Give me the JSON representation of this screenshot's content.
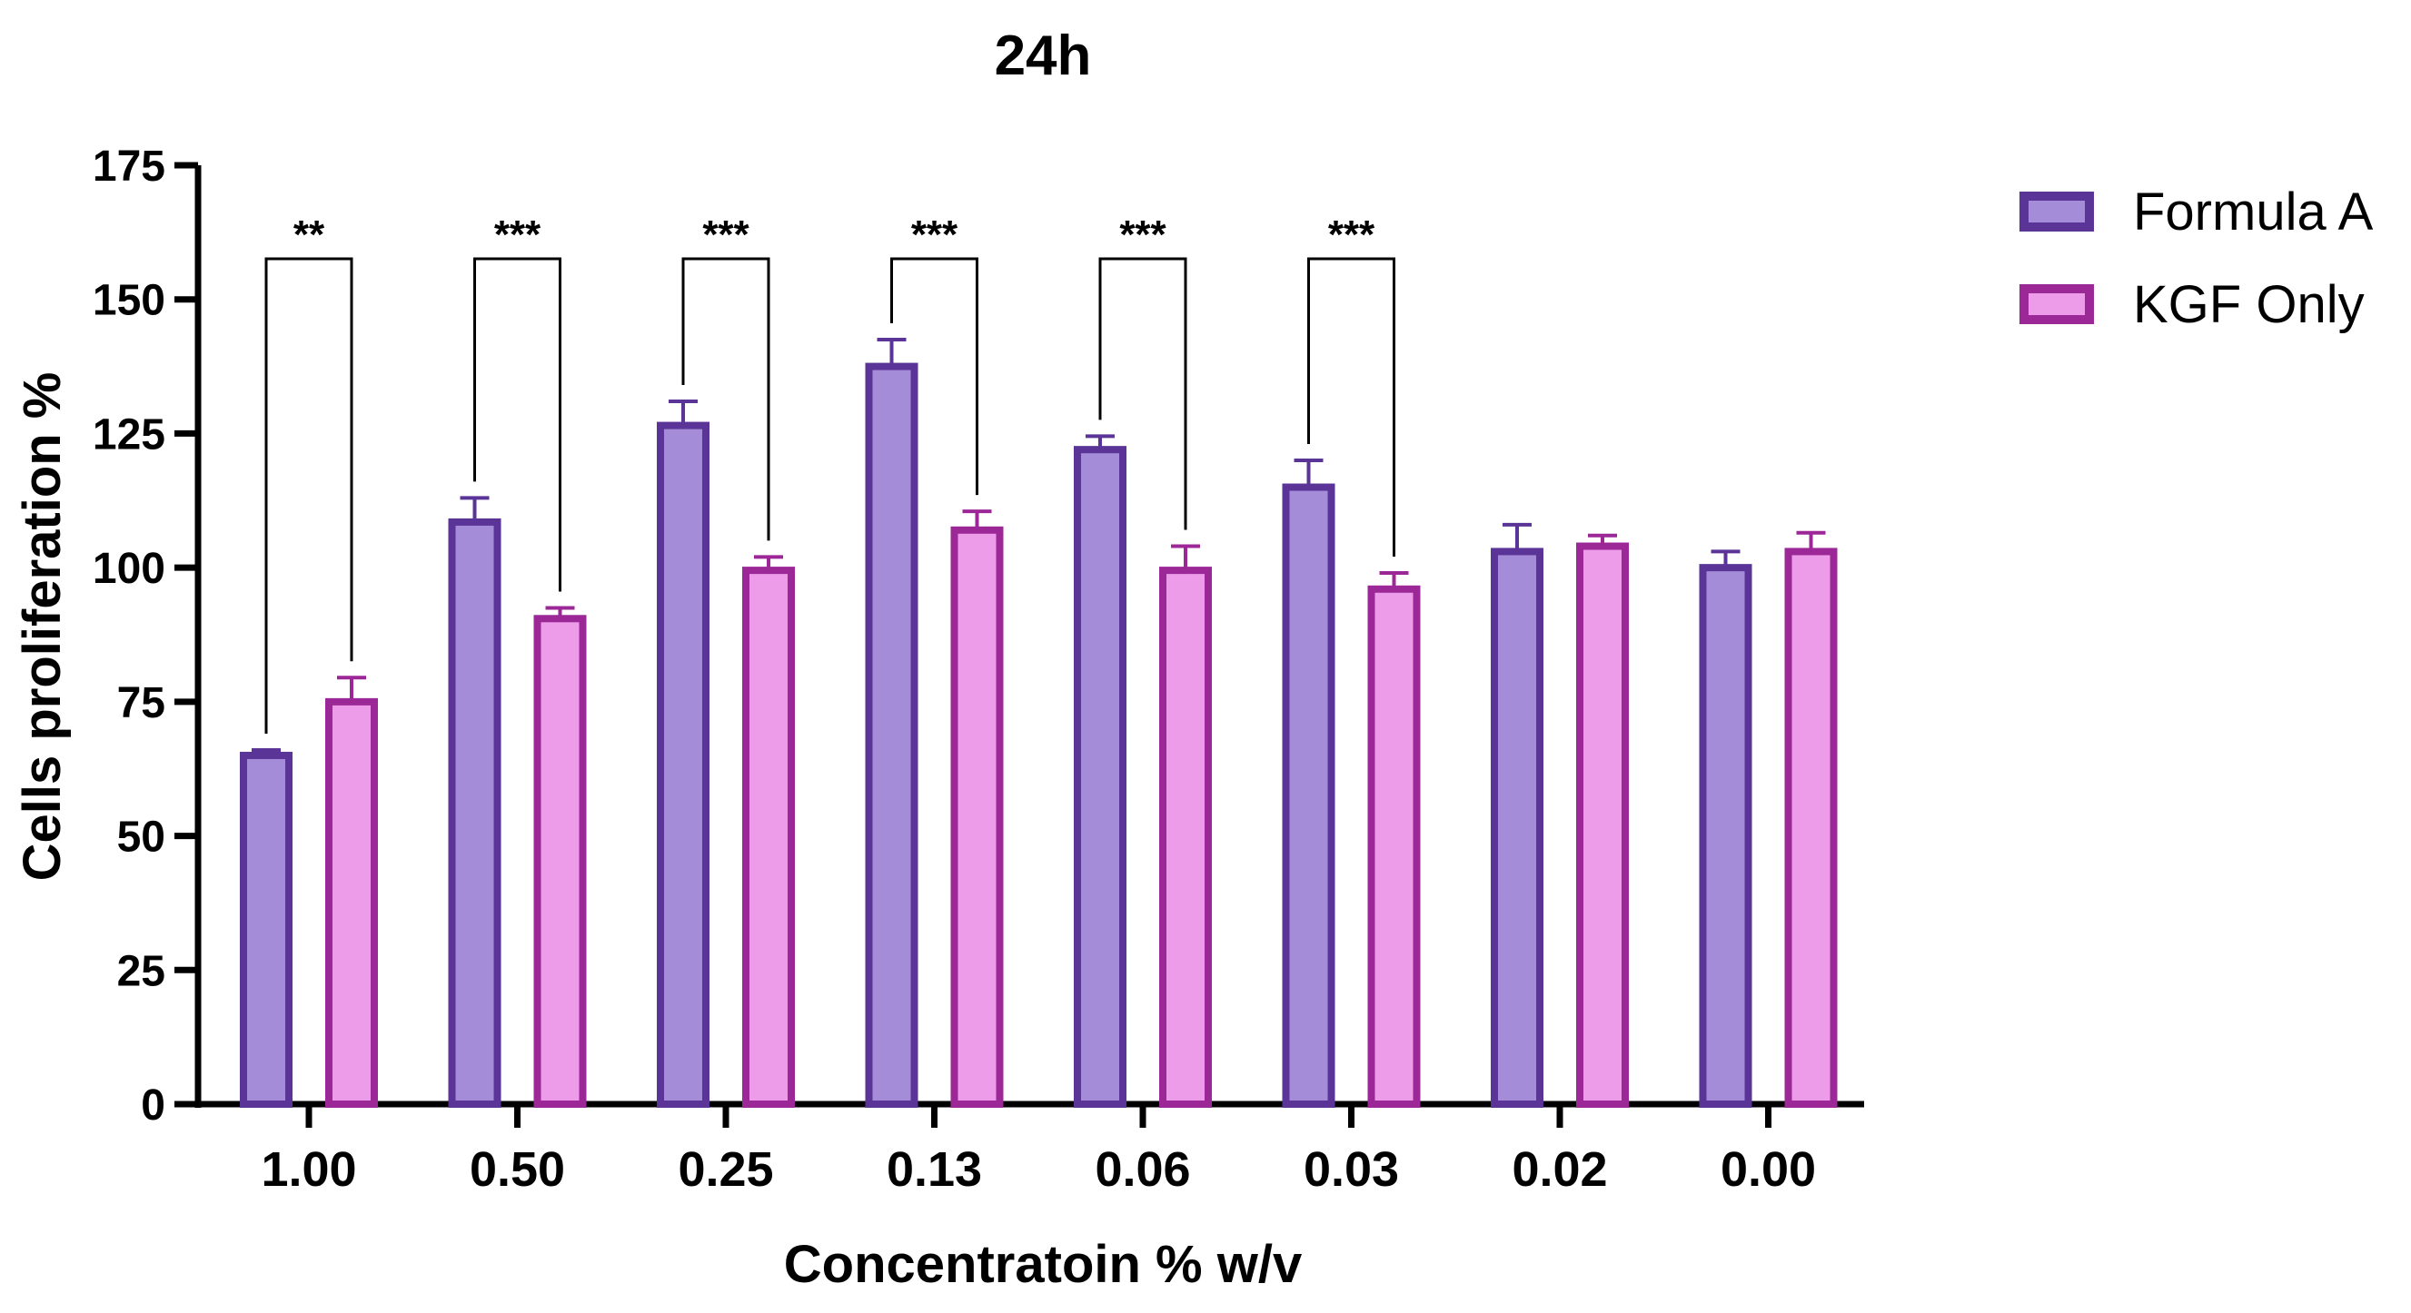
{
  "chart_data": {
    "type": "bar",
    "title": "24h",
    "xlabel": "Concentratoin % w/v",
    "ylabel": "Cells proliferation %",
    "ylim": [
      0,
      175
    ],
    "yticks": [
      0,
      25,
      50,
      75,
      100,
      125,
      150,
      175
    ],
    "categories": [
      "1.00",
      "0.50",
      "0.25",
      "0.13",
      "0.06",
      "0.03",
      "0.02",
      "0.00"
    ],
    "series": [
      {
        "name": "Formula A",
        "values": [
          65,
          108.5,
          126.5,
          137.5,
          122,
          115,
          103,
          100
        ],
        "errors": [
          1,
          4.5,
          4.5,
          5,
          2.5,
          5,
          5,
          3
        ],
        "fill": "#a58cd8",
        "stroke": "#5b3497"
      },
      {
        "name": "KGF Only",
        "values": [
          75,
          90.5,
          99.5,
          107,
          99.5,
          96,
          104,
          103
        ],
        "errors": [
          4.5,
          2,
          2.5,
          3.5,
          4.5,
          3,
          2,
          3.5
        ],
        "fill": "#ec9ce9",
        "stroke": "#9c2796"
      }
    ],
    "significance": [
      {
        "category": "1.00",
        "label": "**"
      },
      {
        "category": "0.50",
        "label": "***"
      },
      {
        "category": "0.25",
        "label": "***"
      },
      {
        "category": "0.13",
        "label": "***"
      },
      {
        "category": "0.06",
        "label": "***"
      },
      {
        "category": "0.03",
        "label": "***"
      }
    ],
    "grid": false,
    "legend": "top-right"
  }
}
